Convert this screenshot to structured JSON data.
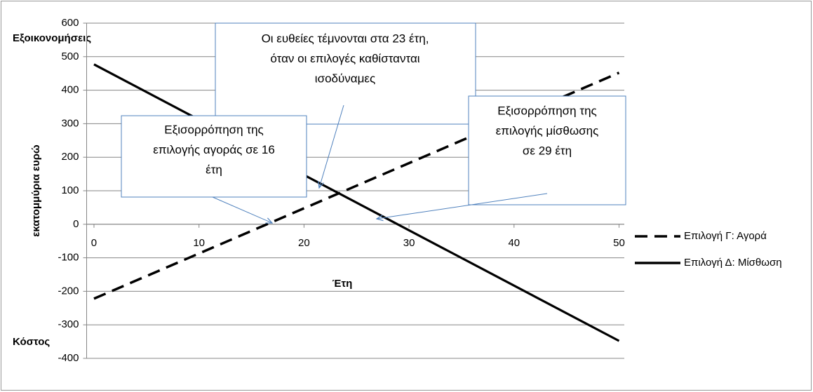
{
  "chart_data": {
    "type": "line",
    "y_label": "εκατομμύρια ευρώ",
    "x_label": "Έτη",
    "top_label": "Εξοικονομήσεις",
    "bottom_label": "Κόστος",
    "x": [
      0,
      50
    ],
    "series": [
      {
        "name": "Επιλογή Γ: Αγορά",
        "color": "#000000",
        "dash": true,
        "values": [
          -222,
          452
        ]
      },
      {
        "name": "Επιλογή Δ: Μίσθωση",
        "color": "#000000",
        "dash": false,
        "values": [
          477,
          -348
        ]
      }
    ],
    "xlim": [
      -0.7,
      50.5
    ],
    "xticks": [
      0,
      10,
      20,
      30,
      40,
      50
    ],
    "ylim": [
      -400,
      600
    ],
    "yticks": [
      -400,
      -300,
      -200,
      -100,
      0,
      100,
      200,
      300,
      400,
      500,
      600
    ],
    "grid": true,
    "legend": "right",
    "annotations": [
      {
        "lines": [
          "Οι ευθείες τέμνονται στα 23 έτη,",
          "όταν οι επιλογές καθίστανται",
          "ισοδύναμες"
        ]
      },
      {
        "lines": [
          "Εξισορρόπηση της",
          "επιλογής αγοράς σε 16",
          "έτη"
        ]
      },
      {
        "lines": [
          "Εξισορρόπηση της",
          "επιλογής μίσθωσης",
          "σε 29 έτη"
        ]
      }
    ]
  }
}
